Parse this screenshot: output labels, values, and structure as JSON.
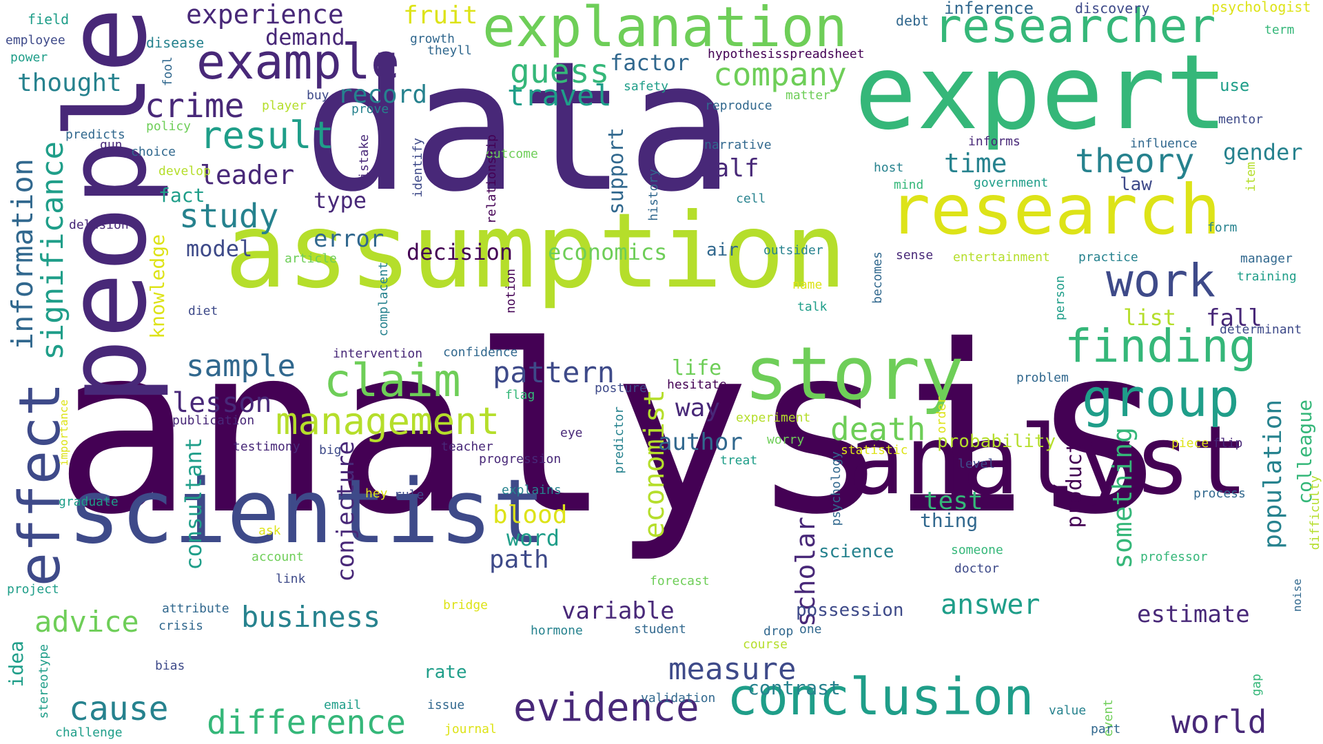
{
  "palette": {
    "c0": "#440154",
    "c1": "#482878",
    "c2": "#3e4a89",
    "c3": "#31688e",
    "c4": "#26828e",
    "c5": "#1f9e89",
    "c6": "#35b779",
    "c7": "#6ece58",
    "c8": "#b5de2b",
    "c9": "#dde318"
  },
  "words": [
    {
      "text": "analysis",
      "color": "c0"
    },
    {
      "text": "data",
      "color": "c1"
    },
    {
      "text": "assumption",
      "color": "c8"
    },
    {
      "text": "expert",
      "color": "c6"
    },
    {
      "text": "people",
      "color": "c1"
    },
    {
      "text": "analyst",
      "color": "c0"
    },
    {
      "text": "research",
      "color": "c9"
    },
    {
      "text": "scientist",
      "color": "c2"
    },
    {
      "text": "story",
      "color": "c7"
    },
    {
      "text": "explanation",
      "color": "c7"
    },
    {
      "text": "researcher",
      "color": "c6"
    },
    {
      "text": "conclusion",
      "color": "c5"
    },
    {
      "text": "example",
      "color": "c1"
    },
    {
      "text": "finding",
      "color": "c6"
    },
    {
      "text": "group",
      "color": "c5"
    },
    {
      "text": "effect",
      "color": "c2"
    },
    {
      "text": "claim",
      "color": "c7"
    },
    {
      "text": "evidence",
      "color": "c1"
    },
    {
      "text": "management",
      "color": "c8"
    },
    {
      "text": "work",
      "color": "c2"
    },
    {
      "text": "theory",
      "color": "c4"
    },
    {
      "text": "cause",
      "color": "c4"
    },
    {
      "text": "difference",
      "color": "c6"
    },
    {
      "text": "information",
      "color": "c3"
    },
    {
      "text": "significance",
      "color": "c5"
    },
    {
      "text": "study",
      "color": "c4"
    },
    {
      "text": "result",
      "color": "c5"
    },
    {
      "text": "company",
      "color": "c7"
    },
    {
      "text": "guess",
      "color": "c6"
    },
    {
      "text": "world",
      "color": "c1"
    },
    {
      "text": "death",
      "color": "c7"
    },
    {
      "text": "crime",
      "color": "c1"
    },
    {
      "text": "sample",
      "color": "c3"
    },
    {
      "text": "pattern",
      "color": "c2"
    },
    {
      "text": "business",
      "color": "c4"
    },
    {
      "text": "measure",
      "color": "c2"
    },
    {
      "text": "population",
      "color": "c4"
    },
    {
      "text": "economist",
      "color": "c8"
    },
    {
      "text": "scholar",
      "color": "c1"
    },
    {
      "text": "answer",
      "color": "c5"
    },
    {
      "text": "something",
      "color": "c6"
    },
    {
      "text": "conjecture",
      "color": "c1"
    },
    {
      "text": "consultant",
      "color": "c5"
    },
    {
      "text": "advice",
      "color": "c7"
    },
    {
      "text": "lesson",
      "color": "c1"
    },
    {
      "text": "experience",
      "color": "c1"
    },
    {
      "text": "time",
      "color": "c4"
    },
    {
      "text": "travel",
      "color": "c5"
    },
    {
      "text": "record",
      "color": "c4"
    },
    {
      "text": "leader",
      "color": "c1"
    },
    {
      "text": "thought",
      "color": "c4"
    },
    {
      "text": "fall",
      "color": "c1"
    },
    {
      "text": "variable",
      "color": "c1"
    },
    {
      "text": "colleague",
      "color": "c6"
    },
    {
      "text": "gender",
      "color": "c4"
    },
    {
      "text": "estimate",
      "color": "c1"
    },
    {
      "text": "half",
      "color": "c1"
    },
    {
      "text": "author",
      "color": "c3"
    },
    {
      "text": "way",
      "color": "c1"
    },
    {
      "text": "demand",
      "color": "c1"
    },
    {
      "text": "factor",
      "color": "c3"
    },
    {
      "text": "support",
      "color": "c3"
    },
    {
      "text": "knowledge",
      "color": "c9"
    },
    {
      "text": "product",
      "color": "c0"
    },
    {
      "text": "error",
      "color": "c3"
    },
    {
      "text": "model",
      "color": "c2"
    },
    {
      "text": "decision",
      "color": "c0"
    },
    {
      "text": "economics",
      "color": "c7"
    },
    {
      "text": "test",
      "color": "c6"
    },
    {
      "text": "type",
      "color": "c1"
    },
    {
      "text": "blood",
      "color": "c9"
    },
    {
      "text": "fruit",
      "color": "c9"
    },
    {
      "text": "word",
      "color": "c5"
    },
    {
      "text": "path",
      "color": "c2"
    },
    {
      "text": "probability",
      "color": "c8"
    },
    {
      "text": "contrast",
      "color": "c4"
    },
    {
      "text": "possession",
      "color": "c2"
    },
    {
      "text": "life",
      "color": "c7"
    },
    {
      "text": "list",
      "color": "c8"
    },
    {
      "text": "idea",
      "color": "c5"
    },
    {
      "text": "rate",
      "color": "c5"
    },
    {
      "text": "fact",
      "color": "c5"
    },
    {
      "text": "thing",
      "color": "c3"
    },
    {
      "text": "science",
      "color": "c4"
    },
    {
      "text": "inference",
      "color": "c3"
    },
    {
      "text": "air",
      "color": "c3"
    },
    {
      "text": "use",
      "color": "c5"
    },
    {
      "text": "law",
      "color": "c2"
    },
    {
      "text": "psychologist",
      "color": "c9"
    },
    {
      "text": "discovery",
      "color": "c2"
    },
    {
      "text": "debt",
      "color": "c3"
    },
    {
      "text": "field",
      "color": "c5"
    },
    {
      "text": "employee",
      "color": "c2"
    },
    {
      "text": "power",
      "color": "c5"
    },
    {
      "text": "disease",
      "color": "c4"
    },
    {
      "text": "growth",
      "color": "c3"
    },
    {
      "text": "theyll",
      "color": "c3"
    },
    {
      "text": "term",
      "color": "c6"
    },
    {
      "text": "hypothesisspreadsheet",
      "color": "c0"
    },
    {
      "text": "fool",
      "color": "c3"
    },
    {
      "text": "buy",
      "color": "c2"
    },
    {
      "text": "safety",
      "color": "c5"
    },
    {
      "text": "matter",
      "color": "c7"
    },
    {
      "text": "player",
      "color": "c8"
    },
    {
      "text": "prove",
      "color": "c4"
    },
    {
      "text": "reproduce",
      "color": "c3"
    },
    {
      "text": "mentor",
      "color": "c2"
    },
    {
      "text": "predicts",
      "color": "c3"
    },
    {
      "text": "policy",
      "color": "c7"
    },
    {
      "text": "gun",
      "color": "c1"
    },
    {
      "text": "choice",
      "color": "c3"
    },
    {
      "text": "mistake",
      "color": "c1"
    },
    {
      "text": "outcome",
      "color": "c7"
    },
    {
      "text": "informs",
      "color": "c1"
    },
    {
      "text": "influence",
      "color": "c3"
    },
    {
      "text": "narrative",
      "color": "c3"
    },
    {
      "text": "identify",
      "color": "c2"
    },
    {
      "text": "relationship",
      "color": "c0"
    },
    {
      "text": "host",
      "color": "c4"
    },
    {
      "text": "develop",
      "color": "c8"
    },
    {
      "text": "mind",
      "color": "c6"
    },
    {
      "text": "government",
      "color": "c5"
    },
    {
      "text": "item",
      "color": "c8"
    },
    {
      "text": "history",
      "color": "c3"
    },
    {
      "text": "cell",
      "color": "c4"
    },
    {
      "text": "delusion",
      "color": "c1"
    },
    {
      "text": "form",
      "color": "c4"
    },
    {
      "text": "outsider",
      "color": "c4"
    },
    {
      "text": "sense",
      "color": "c1"
    },
    {
      "text": "article",
      "color": "c7"
    },
    {
      "text": "entertainment",
      "color": "c8"
    },
    {
      "text": "practice",
      "color": "c4"
    },
    {
      "text": "manager",
      "color": "c3"
    },
    {
      "text": "training",
      "color": "c5"
    },
    {
      "text": "name",
      "color": "c9"
    },
    {
      "text": "complacent",
      "color": "c4"
    },
    {
      "text": "notion",
      "color": "c0"
    },
    {
      "text": "becomes",
      "color": "c3"
    },
    {
      "text": "person",
      "color": "c5"
    },
    {
      "text": "diet",
      "color": "c2"
    },
    {
      "text": "talk",
      "color": "c5"
    },
    {
      "text": "determinant",
      "color": "c2"
    },
    {
      "text": "intervention",
      "color": "c1"
    },
    {
      "text": "confidence",
      "color": "c3"
    },
    {
      "text": "importance",
      "color": "c9"
    },
    {
      "text": "flag",
      "color": "c6"
    },
    {
      "text": "posture",
      "color": "c2"
    },
    {
      "text": "hesitate",
      "color": "c0"
    },
    {
      "text": "problem",
      "color": "c3"
    },
    {
      "text": "publication",
      "color": "c1"
    },
    {
      "text": "predictor",
      "color": "c4"
    },
    {
      "text": "experiment",
      "color": "c8"
    },
    {
      "text": "order",
      "color": "c9"
    },
    {
      "text": "testimony",
      "color": "c1"
    },
    {
      "text": "eye",
      "color": "c1"
    },
    {
      "text": "worry",
      "color": "c7"
    },
    {
      "text": "statistic",
      "color": "c9"
    },
    {
      "text": "piece",
      "color": "c9"
    },
    {
      "text": "flip",
      "color": "c1"
    },
    {
      "text": "big",
      "color": "c2"
    },
    {
      "text": "teacher",
      "color": "c1"
    },
    {
      "text": "treat",
      "color": "c5"
    },
    {
      "text": "psychology",
      "color": "c3"
    },
    {
      "text": "level",
      "color": "c2"
    },
    {
      "text": "difficulty",
      "color": "c8"
    },
    {
      "text": "progression",
      "color": "c1"
    },
    {
      "text": "graduate",
      "color": "c5"
    },
    {
      "text": "hey",
      "color": "c9"
    },
    {
      "text": "rule",
      "color": "c2"
    },
    {
      "text": "explains",
      "color": "c4"
    },
    {
      "text": "process",
      "color": "c3"
    },
    {
      "text": "ask",
      "color": "c9"
    },
    {
      "text": "someone",
      "color": "c6"
    },
    {
      "text": "professor",
      "color": "c6"
    },
    {
      "text": "account",
      "color": "c7"
    },
    {
      "text": "doctor",
      "color": "c2"
    },
    {
      "text": "project",
      "color": "c5"
    },
    {
      "text": "link",
      "color": "c2"
    },
    {
      "text": "forecast",
      "color": "c7"
    },
    {
      "text": "noise",
      "color": "c3"
    },
    {
      "text": "attribute",
      "color": "c3"
    },
    {
      "text": "bridge",
      "color": "c9"
    },
    {
      "text": "crisis",
      "color": "c3"
    },
    {
      "text": "hormone",
      "color": "c4"
    },
    {
      "text": "student",
      "color": "c3"
    },
    {
      "text": "drop",
      "color": "c3"
    },
    {
      "text": "one",
      "color": "c3"
    },
    {
      "text": "course",
      "color": "c8"
    },
    {
      "text": "stereotype",
      "color": "c5"
    },
    {
      "text": "bias",
      "color": "c2"
    },
    {
      "text": "gap",
      "color": "c6"
    },
    {
      "text": "validation",
      "color": "c3"
    },
    {
      "text": "email",
      "color": "c5"
    },
    {
      "text": "issue",
      "color": "c3"
    },
    {
      "text": "challenge",
      "color": "c5"
    },
    {
      "text": "journal",
      "color": "c9"
    },
    {
      "text": "value",
      "color": "c4"
    },
    {
      "text": "event",
      "color": "c7"
    },
    {
      "text": "part",
      "color": "c3"
    }
  ]
}
